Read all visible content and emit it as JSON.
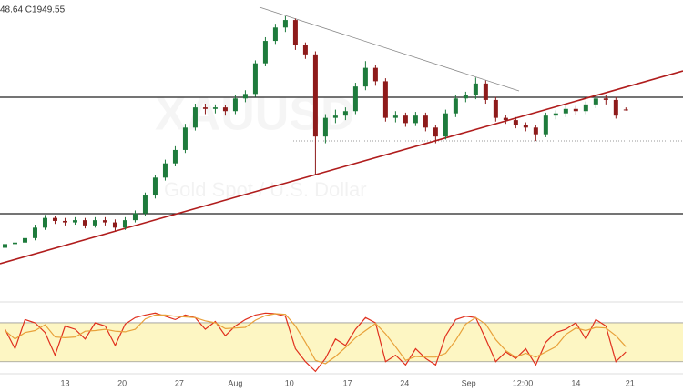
{
  "header": {
    "text": "48.64  C1949.55"
  },
  "chart_data": [
    {
      "type": "candlestick",
      "watermark_symbol": "XAUUSD",
      "watermark_name": "Gold Spot / U.S. Dollar",
      "x": [
        0,
        1,
        2,
        3,
        4,
        5,
        6,
        7,
        8,
        9,
        10,
        11,
        12,
        13,
        14,
        15,
        16,
        17,
        18,
        19,
        20,
        21,
        22,
        23,
        24,
        25,
        26,
        27,
        28,
        29,
        30,
        31,
        32,
        33,
        34,
        35,
        36,
        37,
        38,
        39,
        40,
        41,
        42,
        43,
        44,
        45,
        46,
        47,
        48,
        49,
        50,
        51,
        52,
        53,
        54,
        55,
        56,
        57,
        58,
        59,
        60,
        61,
        62
      ],
      "open": [
        1765,
        1770,
        1772,
        1778,
        1792,
        1805,
        1801,
        1799,
        1802,
        1795,
        1802,
        1799,
        1792,
        1802,
        1811,
        1835,
        1859,
        1878,
        1896,
        1926,
        1953,
        1951,
        1953,
        1948,
        1965,
        1971,
        2012,
        2042,
        2060,
        2070,
        2036,
        2024,
        1914,
        1939,
        1942,
        1948,
        1981,
        2006,
        1988,
        1939,
        1942,
        1932,
        1942,
        1926,
        1914,
        1945,
        1965,
        1969,
        1985,
        1963,
        1939,
        1936,
        1929,
        1926,
        1917,
        1942,
        1945,
        1951,
        1948,
        1957,
        1965,
        1963,
        1950.2
      ],
      "high": [
        1774,
        1776,
        1782,
        1796,
        1809,
        1808,
        1805,
        1806,
        1805,
        1806,
        1806,
        1803,
        1806,
        1815,
        1839,
        1863,
        1883,
        1901,
        1931,
        1958,
        1958,
        1957,
        1956,
        1969,
        1976,
        2016,
        2047,
        2065,
        2075,
        2072,
        2040,
        2028,
        1944,
        1950,
        1953,
        1986,
        2015,
        2010,
        1992,
        1948,
        1946,
        1947,
        1946,
        1930,
        1950,
        1970,
        1974,
        1993,
        1989,
        1967,
        1943,
        1940,
        1933,
        1930,
        1946,
        1949,
        1956,
        1955,
        1961,
        1970,
        1969,
        1967,
        1953
      ],
      "low": [
        1761,
        1766,
        1768,
        1775,
        1789,
        1797,
        1795,
        1796,
        1791,
        1792,
        1795,
        1788,
        1789,
        1799,
        1808,
        1831,
        1855,
        1874,
        1892,
        1922,
        1944,
        1945,
        1942,
        1944,
        1960,
        1967,
        2008,
        2038,
        2054,
        2030,
        2018,
        1863,
        1905,
        1932,
        1936,
        1944,
        1976,
        1982,
        1934,
        1933,
        1927,
        1928,
        1921,
        1905,
        1910,
        1940,
        1960,
        1964,
        1958,
        1934,
        1931,
        1925,
        1921,
        1908,
        1913,
        1937,
        1940,
        1943,
        1944,
        1952,
        1957,
        1938,
        1948.64
      ],
      "close": [
        1770,
        1772,
        1778,
        1792,
        1805,
        1801,
        1799,
        1802,
        1795,
        1802,
        1799,
        1792,
        1802,
        1811,
        1835,
        1859,
        1878,
        1896,
        1926,
        1953,
        1951,
        1953,
        1948,
        1965,
        1971,
        2012,
        2042,
        2060,
        2070,
        2036,
        2024,
        1914,
        1939,
        1942,
        1948,
        1981,
        2006,
        1988,
        1939,
        1942,
        1932,
        1942,
        1926,
        1914,
        1945,
        1965,
        1969,
        1985,
        1963,
        1939,
        1936,
        1929,
        1926,
        1917,
        1942,
        1945,
        1951,
        1948,
        1957,
        1965,
        1963,
        1942,
        1949.55
      ],
      "up_color": "#1e7b3c",
      "down_color": "#8e1b1b",
      "xlim": [
        -0.5,
        67.7
      ],
      "xticks": [
        {
          "value": 6,
          "label": "13"
        },
        {
          "value": 11.7,
          "label": "20"
        },
        {
          "value": 17.4,
          "label": "27"
        },
        {
          "value": 23,
          "label": "Aug"
        },
        {
          "value": 28.4,
          "label": "10"
        },
        {
          "value": 34.2,
          "label": "17"
        },
        {
          "value": 39.9,
          "label": "24"
        },
        {
          "value": 46.3,
          "label": "Sep"
        },
        {
          "value": 51.7,
          "label": "12:00"
        },
        {
          "value": 57,
          "label": "14"
        },
        {
          "value": 62.4,
          "label": "21"
        }
      ],
      "ylim": [
        1731.5,
        2090.8
      ]
    },
    {
      "type": "line",
      "series": [
        {
          "color": "#e0301e",
          "values": [
            70,
            40,
            85,
            80,
            65,
            30,
            75,
            70,
            55,
            80,
            75,
            45,
            78,
            88,
            92,
            95,
            90,
            85,
            92,
            88,
            70,
            82,
            60,
            75,
            85,
            92,
            95,
            94,
            90,
            40,
            20,
            5,
            25,
            55,
            45,
            70,
            88,
            80,
            20,
            30,
            15,
            40,
            25,
            15,
            60,
            85,
            90,
            88,
            55,
            20,
            35,
            25,
            40,
            15,
            50,
            65,
            70,
            80,
            55,
            85,
            75,
            20,
            35
          ]
        },
        {
          "color": "#e8a13a",
          "values": [
            68,
            55,
            65,
            68,
            77,
            58,
            57,
            58,
            67,
            68,
            70,
            67,
            66,
            70,
            86,
            92,
            92,
            90,
            89,
            88,
            83,
            80,
            71,
            72,
            73,
            84,
            91,
            94,
            93,
            75,
            50,
            22,
            17,
            28,
            42,
            57,
            68,
            79,
            63,
            43,
            22,
            28,
            27,
            27,
            33,
            53,
            78,
            88,
            78,
            54,
            37,
            27,
            33,
            27,
            35,
            43,
            62,
            72,
            68,
            73,
            72,
            60,
            43
          ]
        }
      ],
      "bands": [
        20,
        80
      ],
      "band_color": "#fdf6c3",
      "ylim": [
        0,
        100
      ]
    }
  ]
}
